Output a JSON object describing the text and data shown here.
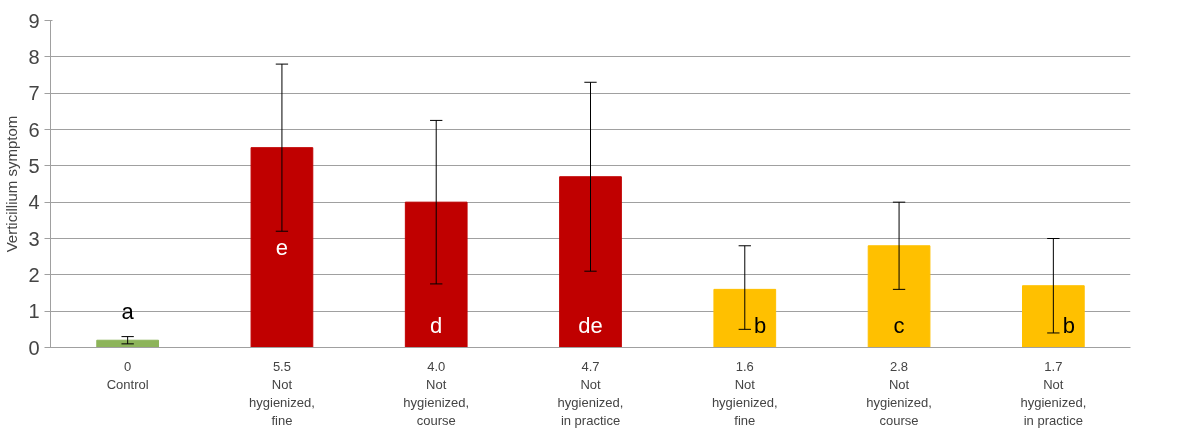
{
  "chart_data": {
    "type": "bar",
    "ylabel": "Verticillium symptom",
    "categories": [
      "0\nControl",
      "5.5\nNot\nhygienized,\nfine",
      "4.0\nNot\nhygienized,\ncourse",
      "4.7\nNot\nhygienized,\nin practice",
      "1.6\nNot\nhygienized,\nfine",
      "2.8\nNot\nhygienized,\ncourse",
      "1.7\nNot\nhygienized,\nin practice"
    ],
    "values": [
      0.2,
      5.5,
      4.0,
      4.7,
      1.6,
      2.8,
      1.7
    ],
    "colors": [
      "#8db45a",
      "#c00000",
      "#c00000",
      "#c00000",
      "#ffc000",
      "#ffc000",
      "#ffc000"
    ],
    "errors": [
      [
        0.1,
        0.3
      ],
      [
        3.2,
        7.8
      ],
      [
        1.75,
        6.25
      ],
      [
        2.1,
        7.3
      ],
      [
        0.5,
        2.8
      ],
      [
        1.6,
        4.0
      ],
      [
        0.4,
        3.0
      ]
    ],
    "ylim": [
      0,
      9
    ],
    "yticks": [
      0,
      1,
      2,
      3,
      4,
      5,
      6,
      7,
      8,
      9
    ],
    "grid": "y",
    "annotations": [
      "a",
      "e",
      "d",
      "de",
      "b",
      "c",
      "b"
    ]
  }
}
